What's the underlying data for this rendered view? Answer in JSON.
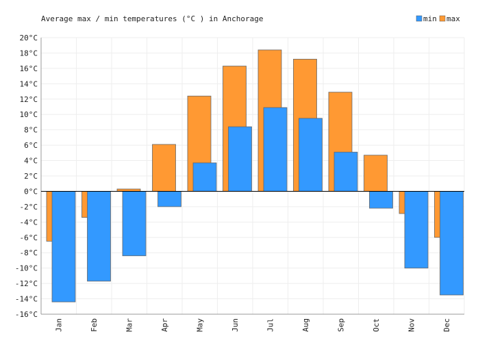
{
  "chart_data": {
    "type": "bar",
    "title": "Average max / min temperatures (°C ) in Anchorage",
    "categories": [
      "Jan",
      "Feb",
      "Mar",
      "Apr",
      "May",
      "Jun",
      "Jul",
      "Aug",
      "Sep",
      "Oct",
      "Nov",
      "Dec"
    ],
    "series": [
      {
        "name": "min",
        "color": "#3399ff",
        "values": [
          -14.4,
          -11.7,
          -8.4,
          -2.0,
          3.7,
          8.4,
          10.9,
          9.5,
          5.1,
          -2.2,
          -10.0,
          -13.5
        ]
      },
      {
        "name": "max",
        "color": "#ff9933",
        "values": [
          -6.5,
          -3.4,
          0.3,
          6.1,
          12.4,
          16.3,
          18.4,
          17.2,
          12.9,
          4.7,
          -2.9,
          -6.0
        ]
      }
    ],
    "ylim": [
      -16,
      20
    ],
    "ytick_step": 2,
    "ytick_suffix": "°C",
    "legend": {
      "position": "top-right",
      "items": [
        "min",
        "max"
      ]
    },
    "grid": true
  }
}
